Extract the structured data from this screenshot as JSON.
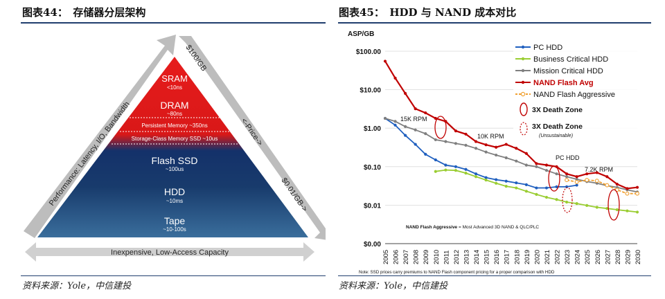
{
  "left_figure": {
    "header": "图表44：　存储器分层架构",
    "source": "资料来源：Yole，中信建投",
    "tiers": [
      {
        "name": "SRAM",
        "latency": "<10ns"
      },
      {
        "name": "DRAM",
        "latency": "~80ns"
      },
      {
        "name": "Persistent Memory ~350ns",
        "latency": ""
      },
      {
        "name": "Storage-Class Memory SSD ~10us",
        "latency": ""
      },
      {
        "name": "Flash SSD",
        "latency": "~100us"
      },
      {
        "name": "HDD",
        "latency": "~10ms"
      },
      {
        "name": "Tape",
        "latency": "~10-100s"
      }
    ],
    "left_arrow": "Performance: Latency, I/O, Bandwidth",
    "top_right_label": "$100/GB",
    "price_label": "<-Price->",
    "bottom_right_label": "$0.01/GB->",
    "bottom_arrow": "Inexpensive, Low-Access Capacity",
    "colors": {
      "red": "#e01e1e",
      "navy": "#12284f",
      "blue_bottom": "#2f5d8a",
      "arrow": "#b8b8b8"
    }
  },
  "right_figure": {
    "header": "图表45：　HDD 与 NAND 成本对比",
    "source": "资料来源：Yole，中信建投",
    "note": "Note: SSD prices carry premiums to NAND Flash component pricing for a proper comparison with HDD",
    "footnote_bold": "NAND Flash Aggressive",
    "footnote_rest": " = Most Advanced 3D NAND & QLC/PLC",
    "death_zone_label": "3X Death Zone",
    "death_zone_label2": "3X Death Zone",
    "death_zone_sub": "(Unsustainable)",
    "annotations": [
      "15K RPM",
      "10K RPM",
      "PC HDD",
      "7.2K RPM"
    ]
  },
  "chart_data": {
    "type": "line",
    "ylabel": "ASP/GB",
    "y_scale": "log",
    "ylim": [
      0.001,
      100
    ],
    "y_ticks": [
      100,
      10,
      1,
      0.1,
      0.01,
      0.001
    ],
    "y_tick_labels": [
      "$100.00",
      "$10.00",
      "$1.00",
      "$0.10",
      "$0.01",
      "$0.00"
    ],
    "x": [
      2005,
      2006,
      2007,
      2008,
      2009,
      2010,
      2011,
      2012,
      2013,
      2014,
      2015,
      2016,
      2017,
      2018,
      2019,
      2020,
      2021,
      2022,
      2023,
      2024,
      2025,
      2026,
      2027,
      2028,
      2029,
      2030
    ],
    "series": [
      {
        "name": "PC HDD",
        "color": "#1f5fbf",
        "style": "solid",
        "values": [
          1.8,
          1.2,
          0.65,
          0.38,
          0.21,
          0.15,
          0.11,
          0.1,
          0.085,
          0.065,
          0.052,
          0.046,
          0.042,
          0.038,
          0.034,
          0.028,
          0.028,
          0.03,
          0.03,
          0.033,
          null,
          null,
          null,
          null,
          null,
          null
        ]
      },
      {
        "name": "Business Critical HDD",
        "color": "#9acd32",
        "style": "solid",
        "values": [
          null,
          null,
          null,
          null,
          null,
          0.075,
          0.082,
          0.08,
          0.068,
          0.055,
          0.045,
          0.037,
          0.031,
          0.028,
          0.023,
          0.019,
          0.016,
          0.014,
          0.012,
          0.011,
          0.0098,
          0.0088,
          0.0082,
          0.0076,
          0.0071,
          0.0066
        ]
      },
      {
        "name": "Mission Critical HDD",
        "color": "#7f7f7f",
        "style": "solid",
        "values": [
          1.8,
          1.5,
          1.1,
          0.9,
          0.72,
          0.5,
          0.45,
          0.4,
          0.36,
          0.3,
          0.24,
          0.2,
          0.17,
          0.14,
          0.11,
          0.1,
          0.08,
          0.065,
          0.055,
          0.047,
          0.041,
          0.037,
          0.032,
          0.029,
          0.025,
          0.022
        ]
      },
      {
        "name": "NAND Flash Avg",
        "color": "#c00000",
        "style": "solid",
        "values": [
          55,
          20,
          8,
          3.2,
          2.5,
          1.8,
          1.5,
          0.85,
          0.7,
          0.45,
          0.37,
          0.32,
          0.38,
          0.3,
          0.22,
          0.12,
          0.11,
          0.1,
          0.065,
          0.055,
          0.065,
          0.07,
          0.055,
          0.035,
          0.027,
          0.029
        ]
      },
      {
        "name": "NAND Flash Aggressive",
        "color": "#f0a030",
        "style": "dashed",
        "values": [
          null,
          null,
          null,
          null,
          null,
          null,
          null,
          null,
          null,
          null,
          null,
          null,
          null,
          null,
          null,
          null,
          null,
          null,
          0.045,
          0.04,
          0.045,
          0.043,
          0.033,
          0.025,
          0.02,
          0.02
        ]
      }
    ]
  }
}
